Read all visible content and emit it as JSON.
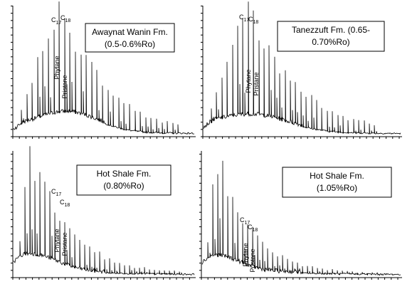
{
  "panels": [
    {
      "box": [
        "Awaynat Wanin Fm.",
        "(0.5-0.6%Ro)"
      ],
      "c17": {
        "base": "C",
        "sub": "17"
      },
      "c18": {
        "base": "C",
        "sub": "18"
      },
      "phytane": "Phytane",
      "pristane": "Pristane"
    },
    {
      "box": [
        "Tanezzuft  Fm. (0.65-",
        "0.70%Ro)"
      ],
      "c17": {
        "base": "C",
        "sub": "17"
      },
      "c18": {
        "base": "C",
        "sub": "18"
      },
      "phytane": "Phytane",
      "pristane": "Pristane"
    },
    {
      "box": [
        "Hot Shale Fm.",
        "(0.80%Ro)"
      ],
      "c17": {
        "base": "C",
        "sub": "17"
      },
      "c18": {
        "base": "C",
        "sub": "18"
      },
      "phytane": "Phytane",
      "pristane": "Pristane"
    },
    {
      "box": [
        "Hot Shale Fm.",
        "(1.05%Ro)"
      ],
      "c17": {
        "base": "C",
        "sub": "17"
      },
      "c18": {
        "base": "C",
        "sub": "18"
      },
      "phytane": "Phytane",
      "pristane": "Pristane"
    }
  ]
}
